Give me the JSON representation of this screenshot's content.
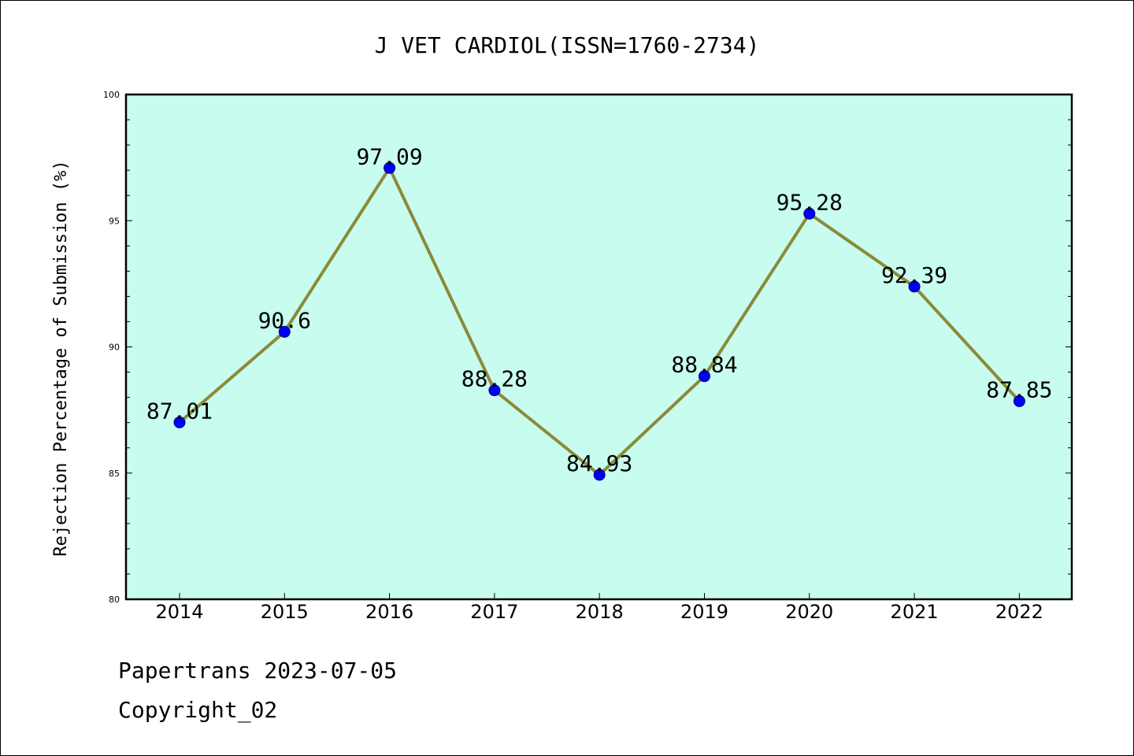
{
  "chart_data": {
    "type": "line",
    "title": "J VET CARDIOL(ISSN=1760-2734)",
    "xlabel": "",
    "ylabel": "Rejection Percentage of Submission (%)",
    "categories": [
      "2014",
      "2015",
      "2016",
      "2017",
      "2018",
      "2019",
      "2020",
      "2021",
      "2022"
    ],
    "series": [
      {
        "values": [
          87.01,
          90.6,
          97.09,
          88.28,
          84.93,
          88.84,
          95.28,
          92.39,
          87.85
        ]
      }
    ],
    "data_labels": [
      "87.01",
      "90.6",
      "97.09",
      "88.28",
      "84.93",
      "88.84",
      "95.28",
      "92.39",
      "87.85"
    ],
    "ylim": [
      80,
      100
    ],
    "yticks": [
      80,
      85,
      90,
      95,
      100
    ],
    "grid": false,
    "colors": {
      "plot_background": "#c8fcee",
      "line": "#8b8a3a",
      "marker": "#0000ff"
    }
  },
  "footer": {
    "line1": "Papertrans 2023-07-05",
    "line2": "Copyright_02"
  }
}
